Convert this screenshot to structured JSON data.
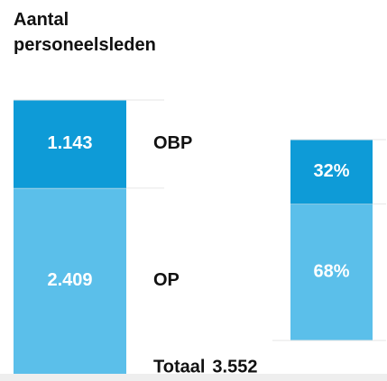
{
  "chart_data": [
    {
      "type": "stacked_bar",
      "title": "Aantal personeelsleden",
      "series": [
        {
          "name": "OP",
          "color": "#5bbfea",
          "values": [
            2409
          ],
          "value_labels": [
            "2.409"
          ]
        },
        {
          "name": "OBP",
          "color": "#0e9bd7",
          "values": [
            1143
          ],
          "value_labels": [
            "1.143"
          ]
        }
      ],
      "total": {
        "label": "Totaal",
        "value": 3552,
        "value_label": "3.552"
      }
    },
    {
      "type": "stacked_bar",
      "series": [
        {
          "color": "#5bbfea",
          "values": [
            68
          ],
          "value_labels": [
            "68%"
          ]
        },
        {
          "color": "#0e9bd7",
          "values": [
            32
          ],
          "value_labels": [
            "32%"
          ]
        }
      ]
    }
  ]
}
